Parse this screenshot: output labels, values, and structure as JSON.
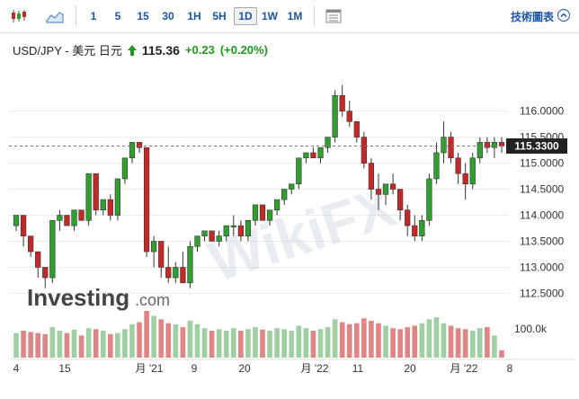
{
  "toolbar": {
    "chart_type_icons": [
      "candlestick-icon",
      "area-chart-icon"
    ],
    "intervals": [
      "1",
      "5",
      "15",
      "30",
      "1H",
      "5H",
      "1D",
      "1W",
      "1M"
    ],
    "active_interval": "1D",
    "settings_icon": "chart-settings-icon",
    "technical_link": "技術圖表",
    "technical_icon": "chevron-up-icon"
  },
  "quote": {
    "symbol": "USD/JPY - 美元 日元",
    "price": "115.36",
    "change": "+0.23",
    "change_pct": "(+0.20%)",
    "up_icon": "up-arrow-icon",
    "up_color": "#1a9a1a"
  },
  "chart_data": {
    "type": "candlestick",
    "y_ticks": [
      "116.0000",
      "115.5000",
      "115.0000",
      "114.5000",
      "114.0000",
      "113.5000",
      "113.0000",
      "112.5000"
    ],
    "ylim": [
      112.3,
      116.65
    ],
    "current_price_label": "115.3300",
    "current_price": 115.33,
    "volume_label": "100.0k",
    "x_labels": [
      "4",
      "15",
      "月 '21",
      "9",
      "20",
      "月 '22",
      "11",
      "20",
      "月 '22",
      "8"
    ],
    "up_color": "#2ea02e",
    "down_color": "#c62828",
    "ohlc": [
      [
        113.8,
        114.0,
        113.7,
        114.0
      ],
      [
        114.0,
        114.0,
        113.4,
        113.6
      ],
      [
        113.6,
        113.6,
        113.2,
        113.3
      ],
      [
        113.3,
        113.3,
        112.8,
        113.0
      ],
      [
        113.0,
        113.0,
        112.6,
        112.8
      ],
      [
        112.8,
        113.9,
        112.7,
        113.9
      ],
      [
        113.9,
        114.1,
        113.7,
        114.0
      ],
      [
        114.0,
        114.0,
        113.8,
        113.8
      ],
      [
        113.8,
        114.1,
        113.7,
        114.1
      ],
      [
        114.1,
        114.1,
        113.9,
        113.9
      ],
      [
        113.9,
        114.8,
        113.8,
        114.8
      ],
      [
        114.8,
        114.8,
        114.0,
        114.1
      ],
      [
        114.1,
        114.3,
        114.0,
        114.3
      ],
      [
        114.3,
        114.4,
        113.9,
        114.0
      ],
      [
        114.0,
        114.7,
        113.9,
        114.7
      ],
      [
        114.7,
        115.1,
        114.6,
        115.1
      ],
      [
        115.1,
        115.4,
        115.0,
        115.4
      ],
      [
        115.4,
        115.4,
        115.2,
        115.3
      ],
      [
        115.3,
        115.3,
        113.2,
        113.3
      ],
      [
        113.3,
        113.6,
        113.0,
        113.5
      ],
      [
        113.5,
        113.5,
        112.8,
        113.0
      ],
      [
        113.0,
        113.4,
        112.7,
        112.8
      ],
      [
        112.8,
        113.1,
        112.7,
        113.0
      ],
      [
        113.0,
        113.3,
        112.7,
        112.7
      ],
      [
        112.7,
        113.5,
        112.6,
        113.4
      ],
      [
        113.4,
        113.6,
        113.3,
        113.6
      ],
      [
        113.6,
        113.7,
        113.5,
        113.7
      ],
      [
        113.7,
        113.7,
        113.5,
        113.5
      ],
      [
        113.5,
        113.7,
        113.4,
        113.6
      ],
      [
        113.6,
        113.8,
        113.5,
        113.8
      ],
      [
        113.8,
        114.0,
        113.6,
        113.8
      ],
      [
        113.8,
        113.9,
        113.5,
        113.6
      ],
      [
        113.6,
        113.9,
        113.5,
        113.9
      ],
      [
        113.9,
        114.2,
        113.8,
        114.2
      ],
      [
        114.2,
        114.2,
        113.9,
        113.9
      ],
      [
        113.9,
        114.1,
        113.8,
        114.1
      ],
      [
        114.1,
        114.3,
        114.0,
        114.3
      ],
      [
        114.3,
        114.5,
        114.2,
        114.5
      ],
      [
        114.5,
        114.6,
        114.4,
        114.6
      ],
      [
        114.6,
        115.1,
        114.5,
        115.1
      ],
      [
        115.1,
        115.2,
        115.0,
        115.2
      ],
      [
        115.2,
        115.3,
        115.1,
        115.1
      ],
      [
        115.1,
        115.3,
        115.0,
        115.3
      ],
      [
        115.3,
        115.5,
        115.2,
        115.5
      ],
      [
        115.5,
        116.4,
        115.4,
        116.3
      ],
      [
        116.3,
        116.5,
        115.9,
        116.0
      ],
      [
        116.0,
        116.2,
        115.7,
        115.8
      ],
      [
        115.8,
        115.8,
        115.4,
        115.5
      ],
      [
        115.5,
        115.6,
        114.9,
        115.0
      ],
      [
        115.0,
        115.1,
        114.3,
        114.5
      ],
      [
        114.5,
        114.8,
        114.1,
        114.4
      ],
      [
        114.4,
        114.6,
        114.2,
        114.6
      ],
      [
        114.6,
        114.8,
        114.4,
        114.5
      ],
      [
        114.5,
        114.5,
        113.9,
        114.1
      ],
      [
        114.1,
        114.2,
        113.6,
        113.8
      ],
      [
        113.8,
        114.0,
        113.5,
        113.6
      ],
      [
        113.6,
        114.0,
        113.5,
        113.9
      ],
      [
        113.9,
        114.8,
        113.8,
        114.7
      ],
      [
        114.7,
        115.4,
        114.6,
        115.2
      ],
      [
        115.2,
        115.8,
        115.0,
        115.5
      ],
      [
        115.5,
        115.6,
        115.0,
        115.1
      ],
      [
        115.1,
        115.2,
        114.6,
        114.8
      ],
      [
        114.8,
        115.0,
        114.3,
        114.6
      ],
      [
        114.6,
        115.2,
        114.5,
        115.1
      ],
      [
        115.1,
        115.5,
        115.0,
        115.4
      ],
      [
        115.4,
        115.5,
        115.2,
        115.3
      ],
      [
        115.3,
        115.5,
        115.1,
        115.4
      ],
      [
        115.4,
        115.5,
        115.2,
        115.33
      ]
    ],
    "volume": [
      50,
      55,
      52,
      50,
      48,
      62,
      55,
      50,
      57,
      45,
      60,
      58,
      55,
      48,
      50,
      58,
      68,
      72,
      95,
      85,
      78,
      70,
      68,
      62,
      75,
      68,
      60,
      55,
      58,
      55,
      60,
      55,
      58,
      62,
      57,
      55,
      60,
      58,
      55,
      65,
      60,
      55,
      58,
      62,
      78,
      72,
      68,
      70,
      80,
      75,
      70,
      65,
      60,
      58,
      62,
      65,
      70,
      78,
      82,
      70,
      65,
      60,
      58,
      55,
      60,
      62,
      45,
      15
    ]
  }
}
